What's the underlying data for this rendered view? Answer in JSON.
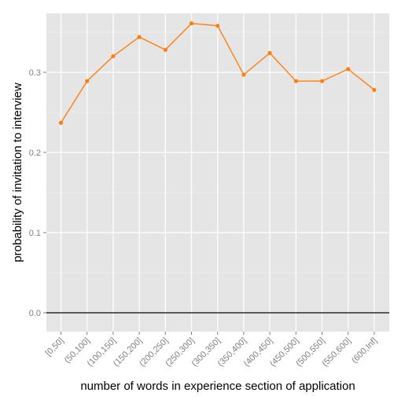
{
  "chart_data": {
    "type": "line",
    "title": "",
    "xlabel": "number of words in experience section of application",
    "ylabel": "probability of invitation to interview",
    "categories": [
      "[0,50]",
      "(50,100]",
      "(100,150]",
      "(150,200]",
      "(200,250]",
      "(250,300]",
      "(300,350]",
      "(350,400]",
      "(400,450]",
      "(450,500]",
      "(500,550]",
      "(550,600]",
      "(600,Inf]"
    ],
    "series": [
      {
        "values": [
          0.237,
          0.289,
          0.32,
          0.344,
          0.328,
          0.361,
          0.358,
          0.297,
          0.324,
          0.289,
          0.289,
          0.304,
          0.278
        ]
      }
    ],
    "ylim": [
      -0.0235,
      0.3735
    ],
    "yticks": [
      0.0,
      0.1,
      0.2,
      0.3
    ],
    "ytick_labels": [
      "0.0",
      "0.1",
      "0.2",
      "0.3"
    ],
    "hline": 0,
    "grid": true,
    "colors": {
      "series": "#ff7f0e",
      "panel": "#e5e5e5",
      "grid": "#ffffff",
      "hline": "#000000"
    }
  }
}
